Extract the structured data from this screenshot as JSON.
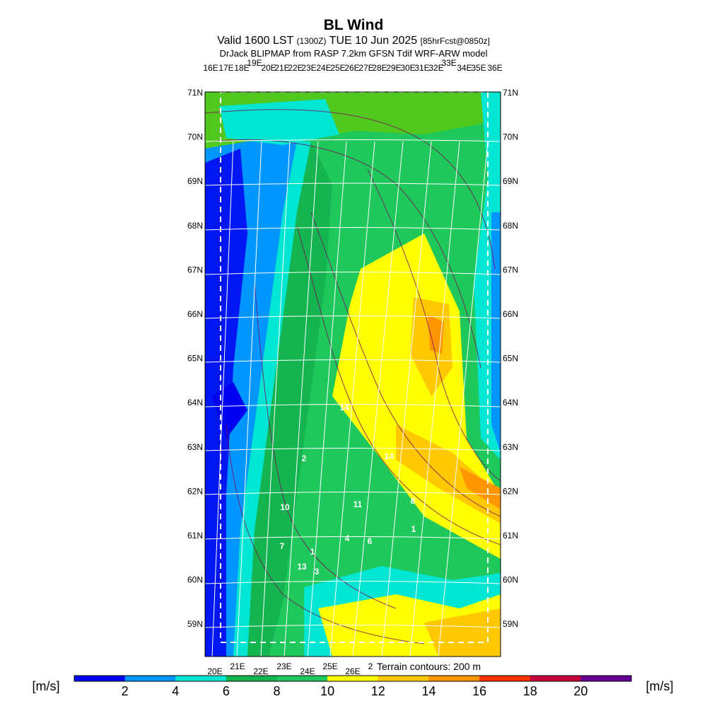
{
  "header": {
    "title": "BL Wind",
    "valid": [
      "Valid 1600 LST",
      "(1300Z)",
      "TUE 10 Jun 2025",
      "[85hrFcst@0850z]"
    ],
    "model": "DrJack BLIPMAP from RASP 7.2km GFSN Tdif WRF-ARW model"
  },
  "map": {
    "lat_labels": [
      "71N",
      "70N",
      "69N",
      "68N",
      "67N",
      "66N",
      "65N",
      "64N",
      "63N",
      "62N",
      "61N",
      "60N",
      "59N"
    ],
    "top_lon_labels": [
      "16E",
      "17E",
      "18E",
      "19E",
      "20E",
      "21E",
      "22E",
      "23E",
      "24E",
      "25E",
      "26E",
      "27E",
      "28E",
      "29E",
      "30E",
      "31E",
      "32E",
      "33E",
      "34E",
      "35E",
      "36E"
    ],
    "bottom_lon_labels": [
      "20E",
      "21E",
      "22E",
      "23E",
      "24E",
      "25E",
      "26E",
      "2"
    ],
    "terrain_note": "Terrain contours: 200 m",
    "point_labels": [
      "14",
      "2",
      "14",
      "10",
      "11",
      "8",
      "7",
      "1",
      "4",
      "6",
      "13",
      "3",
      "1"
    ]
  },
  "colorbar": {
    "unit": "[m/s]",
    "lim": [
      0,
      22
    ],
    "ticks": [
      2,
      4,
      6,
      8,
      10,
      12,
      14,
      16,
      18,
      20
    ],
    "colors": [
      "#0000f0",
      "#0096ff",
      "#00e6d2",
      "#14b450",
      "#1ec85a",
      "#ffff00",
      "#ffc800",
      "#ff9600",
      "#ff3200",
      "#c8003c",
      "#640096"
    ]
  }
}
